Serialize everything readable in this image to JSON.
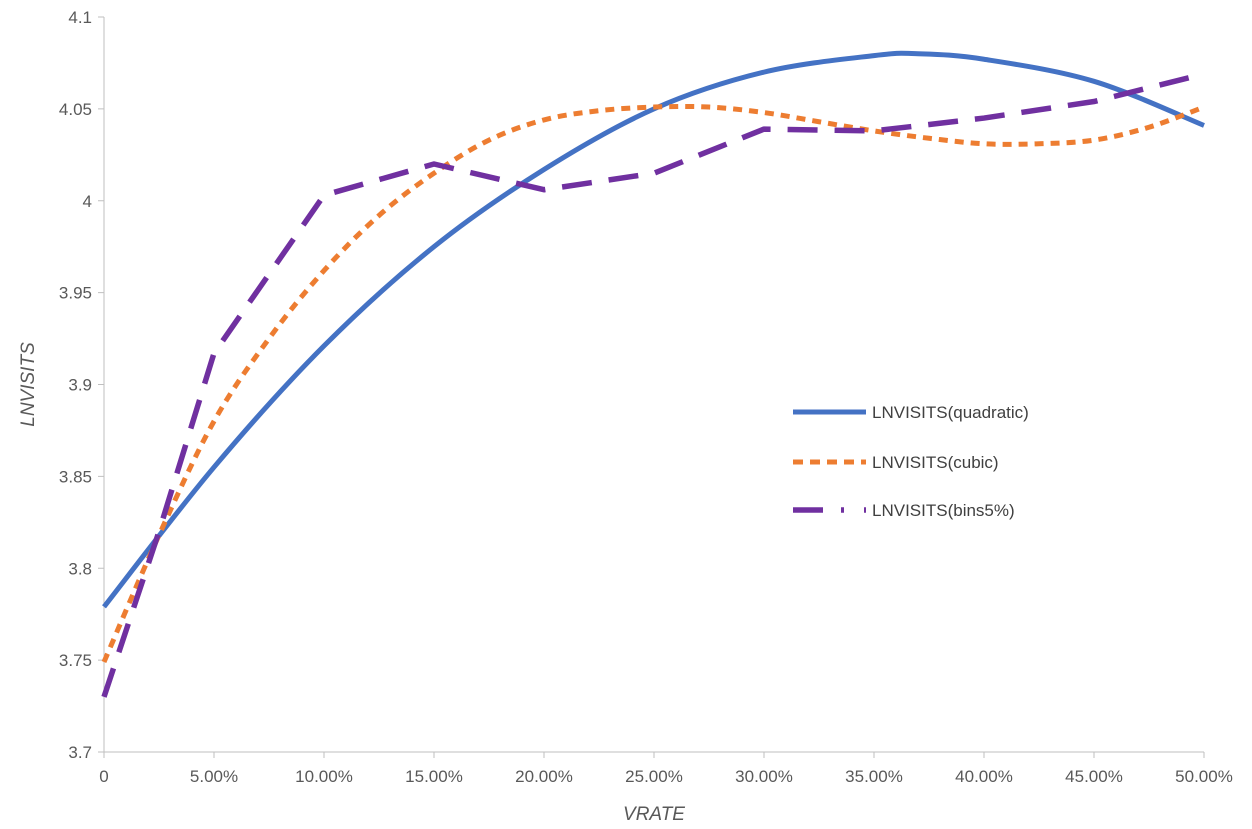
{
  "chart_data": {
    "type": "line",
    "xlabel": "VRATE",
    "ylabel": "LNVISITS",
    "xlim": [
      0,
      0.5
    ],
    "ylim": [
      3.7,
      4.1
    ],
    "x_ticks": [
      0,
      0.05,
      0.1,
      0.15,
      0.2,
      0.25,
      0.3,
      0.35,
      0.4,
      0.45,
      0.5
    ],
    "x_tick_labels": [
      "0",
      "5.00%",
      "10.00%",
      "15.00%",
      "20.00%",
      "25.00%",
      "30.00%",
      "35.00%",
      "40.00%",
      "45.00%",
      "50.00%"
    ],
    "y_ticks": [
      3.7,
      3.75,
      3.8,
      3.85,
      3.9,
      3.95,
      4.0,
      4.05,
      4.1
    ],
    "y_tick_labels": [
      "3.7",
      "3.75",
      "3.8",
      "3.85",
      "3.9",
      "3.95",
      "4",
      "4.05",
      "4.1"
    ],
    "grid": false,
    "legend_position": "right",
    "series": [
      {
        "name": "LNVISITS(quadratic)",
        "color": "#4472C4",
        "style": "solid",
        "x": [
          0,
          0.05,
          0.1,
          0.15,
          0.2,
          0.25,
          0.3,
          0.35,
          0.37,
          0.4,
          0.45,
          0.5
        ],
        "y": [
          3.779,
          3.855,
          3.921,
          3.975,
          4.017,
          4.05,
          4.07,
          4.079,
          4.08,
          4.077,
          4.065,
          4.041
        ]
      },
      {
        "name": "LNVISITS(cubic)",
        "color": "#ED7D31",
        "style": "dotted",
        "x": [
          0,
          0.025,
          0.05,
          0.075,
          0.1,
          0.125,
          0.15,
          0.175,
          0.2,
          0.225,
          0.25,
          0.275,
          0.3,
          0.325,
          0.35,
          0.375,
          0.4,
          0.425,
          0.45,
          0.475,
          0.5
        ],
        "y": [
          3.749,
          3.818,
          3.88,
          3.925,
          3.962,
          3.992,
          4.015,
          4.033,
          4.044,
          4.049,
          4.051,
          4.051,
          4.048,
          4.043,
          4.038,
          4.034,
          4.031,
          4.031,
          4.033,
          4.04,
          4.051
        ]
      },
      {
        "name": "LNVISITS(bins5%)",
        "color": "#7030A0",
        "style": "long-dash",
        "x": [
          0,
          0.025,
          0.05,
          0.1,
          0.15,
          0.2,
          0.25,
          0.3,
          0.35,
          0.4,
          0.45,
          0.5
        ],
        "y": [
          3.73,
          3.82,
          3.917,
          4.003,
          4.02,
          4.006,
          4.015,
          4.039,
          4.038,
          4.045,
          4.054,
          4.069
        ]
      }
    ]
  }
}
